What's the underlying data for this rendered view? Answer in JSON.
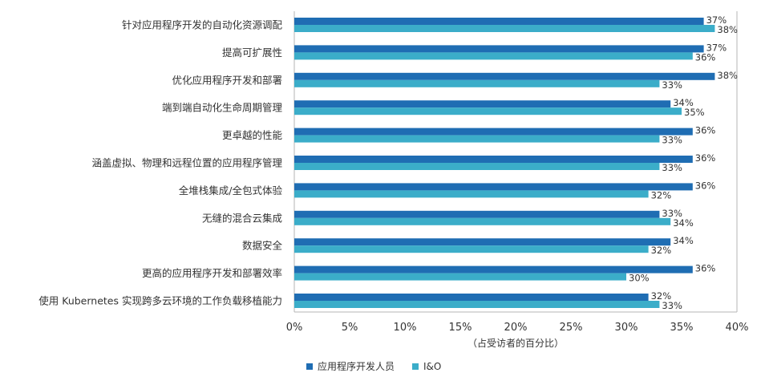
{
  "chart_data": {
    "type": "bar",
    "orientation": "horizontal",
    "categories": [
      "针对应用程序开发的自动化资源调配",
      "提高可扩展性",
      "优化应用程序开发和部署",
      "端到端自动化生命周期管理",
      "更卓越的性能",
      "涵盖虚拟、物理和远程位置的应用程序管理",
      "全堆栈集成/全包式体验",
      "无缝的混合云集成",
      "数据安全",
      "更高的应用程序开发和部署效率",
      "使用 Kubernetes 实现跨多云环境的工作负载移植能力"
    ],
    "series": [
      {
        "name": "应用程序开发人员",
        "values": [
          37,
          37,
          38,
          34,
          36,
          36,
          36,
          33,
          34,
          36,
          32
        ]
      },
      {
        "name": "I&O",
        "values": [
          38,
          36,
          33,
          35,
          33,
          33,
          32,
          34,
          32,
          30,
          33
        ]
      }
    ],
    "x_ticks": [
      "0%",
      "5%",
      "10%",
      "15%",
      "20%",
      "25%",
      "30%",
      "35%",
      "40%"
    ],
    "xlim": [
      0,
      40
    ],
    "xlabel": "（占受访者的百分比）",
    "value_suffix": "%",
    "grid": false,
    "legend_position": "bottom"
  },
  "colors": {
    "series_1": "#1f6db3",
    "series_2": "#3badc9",
    "label_text": "#333333",
    "axis_line": "#b5b5b5"
  }
}
